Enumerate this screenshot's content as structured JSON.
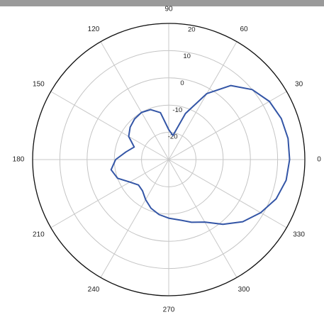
{
  "chart_data": {
    "type": "line",
    "projection": "polar",
    "title": "",
    "angular_ticks": [
      "0",
      "30",
      "60",
      "90",
      "120",
      "150",
      "180",
      "210",
      "240",
      "270",
      "300",
      "330"
    ],
    "radial_ticks": [
      "-20",
      "-10",
      "0",
      "10",
      "20"
    ],
    "radial_range": [
      -30,
      20
    ],
    "angular_unit": "degrees",
    "grid": true,
    "legend": "none",
    "series_color": "#3355a6",
    "series": [
      {
        "theta": [
          0,
          10,
          20,
          30,
          40,
          50,
          60,
          70,
          80,
          90,
          100,
          110,
          120,
          130,
          140,
          150,
          160,
          170,
          180,
          190,
          200,
          210,
          220,
          230,
          240,
          250,
          260,
          270,
          280,
          290,
          300,
          310,
          320,
          330,
          340,
          350,
          360
        ],
        "r": [
          14.4,
          14.5,
          14.0,
          12.7,
          10.0,
          5.5,
          -2.0,
          -12.0,
          -21.0,
          -19.0,
          -12.5,
          -10.5,
          -10.0,
          -10.5,
          -11.5,
          -13.0,
          -16.5,
          -14.0,
          -10.5,
          -8.5,
          -10.0,
          -13.5,
          -15.5,
          -15.0,
          -13.0,
          -11.0,
          -9.5,
          -8.5,
          -7.5,
          -5.5,
          -3.5,
          1.0,
          5.5,
          9.0,
          12.0,
          13.8,
          14.4
        ]
      }
    ]
  }
}
